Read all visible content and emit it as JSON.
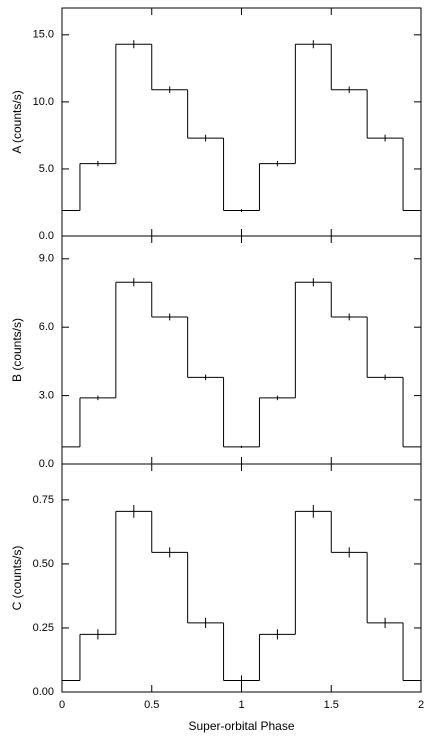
{
  "chart_data": [
    {
      "type": "step",
      "ylabel": "A (counts/s)",
      "x": [
        0,
        0.2,
        0.4,
        0.6,
        0.8,
        1,
        1.2,
        1.4,
        1.6,
        1.8,
        2
      ],
      "values": [
        1.9,
        5.4,
        14.3,
        10.9,
        7.3,
        1.9,
        5.4,
        14.3,
        10.9,
        7.3,
        1.9
      ],
      "errors": [
        0.1,
        0.2,
        0.3,
        0.25,
        0.25,
        0.1,
        0.2,
        0.3,
        0.25,
        0.25,
        0.1
      ],
      "xlim": [
        0,
        2
      ],
      "xticks": [
        0,
        0.5,
        1,
        1.5,
        2
      ],
      "ylim": [
        0,
        17
      ],
      "yticks": [
        {
          "value": 0,
          "label": "0.0"
        },
        {
          "value": 5,
          "label": "5.0"
        },
        {
          "value": 10,
          "label": "10.0"
        },
        {
          "value": 15,
          "label": "15.0"
        }
      ],
      "color": "#000000"
    },
    {
      "type": "step",
      "ylabel": "B (counts/s)",
      "x": [
        0,
        0.2,
        0.4,
        0.6,
        0.8,
        1,
        1.2,
        1.4,
        1.6,
        1.8,
        2
      ],
      "values": [
        0.75,
        2.9,
        7.97,
        6.45,
        3.8,
        0.75,
        2.9,
        7.97,
        6.45,
        3.8,
        0.75
      ],
      "errors": [
        0.05,
        0.1,
        0.18,
        0.15,
        0.12,
        0.05,
        0.1,
        0.18,
        0.15,
        0.12,
        0.05
      ],
      "xlim": [
        0,
        2
      ],
      "xticks": [
        0,
        0.5,
        1,
        1.5,
        2
      ],
      "ylim": [
        0,
        10
      ],
      "yticks": [
        {
          "value": 0,
          "label": "0.0"
        },
        {
          "value": 3,
          "label": "3.0"
        },
        {
          "value": 6,
          "label": "6.0"
        },
        {
          "value": 9,
          "label": "9.0"
        }
      ],
      "color": "#000000"
    },
    {
      "type": "step",
      "ylabel": "C (counts/s)",
      "xlabel": "Super-orbital Phase",
      "x": [
        0,
        0.2,
        0.4,
        0.6,
        0.8,
        1,
        1.2,
        1.4,
        1.6,
        1.8,
        2
      ],
      "values": [
        0.045,
        0.225,
        0.705,
        0.545,
        0.27,
        0.045,
        0.225,
        0.705,
        0.545,
        0.27,
        0.045
      ],
      "errors": [
        0.02,
        0.02,
        0.025,
        0.02,
        0.02,
        0.02,
        0.02,
        0.025,
        0.02,
        0.02,
        0.02
      ],
      "xlim": [
        0,
        2
      ],
      "xticks": [
        0,
        0.5,
        1,
        1.5,
        2
      ],
      "ylim": [
        0,
        0.89
      ],
      "yticks": [
        {
          "value": 0,
          "label": "0.00"
        },
        {
          "value": 0.25,
          "label": "0.25"
        },
        {
          "value": 0.5,
          "label": "0.50"
        },
        {
          "value": 0.75,
          "label": "0.75"
        }
      ],
      "color": "#000000"
    }
  ]
}
